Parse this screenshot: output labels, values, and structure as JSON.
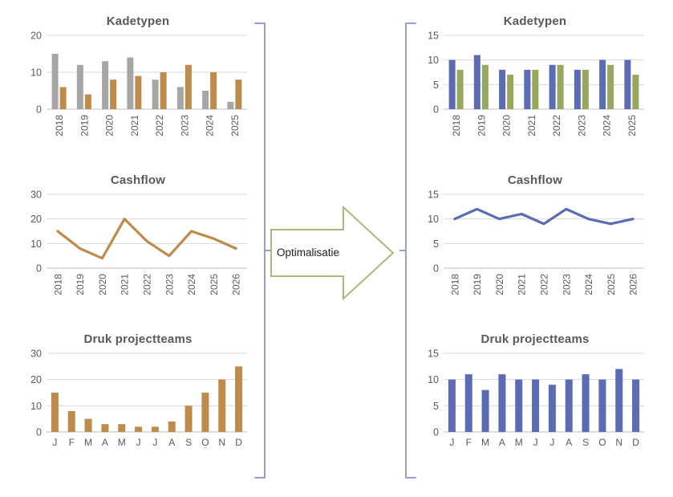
{
  "arrow": {
    "label": "Optimalisatie",
    "border_color": "#A9B97C",
    "fill_color": "#FFFFFF"
  },
  "brackets": {
    "color": "#96A0D6"
  },
  "palette": {
    "gray_series": "#A6A6A6",
    "brown_series": "#BF8B4A",
    "blue_series": "#5B6BB4",
    "green_series": "#97A75F",
    "gridline": "#D9D9D9",
    "axis_line": "#BFBFBF",
    "label_text": "#595959"
  },
  "chart_data": [
    {
      "id": "kadetypen-before",
      "type": "bar",
      "title": "Kadetypen",
      "categories": [
        "2018",
        "2019",
        "2020",
        "2021",
        "2022",
        "2023",
        "2024",
        "2025"
      ],
      "series": [
        {
          "color": "#A6A6A6",
          "values": [
            15,
            12,
            13,
            14,
            8,
            6,
            5,
            2
          ]
        },
        {
          "color": "#BF8B4A",
          "values": [
            6,
            4,
            8,
            9,
            10,
            12,
            10,
            8
          ]
        }
      ],
      "ylim": [
        0,
        20
      ],
      "yticks": [
        0,
        10,
        20
      ],
      "x_label_rotation": 90,
      "grid": true,
      "legend": false
    },
    {
      "id": "cashflow-before",
      "type": "line",
      "title": "Cashflow",
      "categories": [
        "2018",
        "2019",
        "2020",
        "2021",
        "2022",
        "2023",
        "2024",
        "2025",
        "2026"
      ],
      "series": [
        {
          "color": "#BF8B4A",
          "values": [
            15,
            8,
            4,
            20,
            11,
            5,
            15,
            12,
            8
          ]
        }
      ],
      "ylim": [
        0,
        30
      ],
      "yticks": [
        0,
        10,
        20,
        30
      ],
      "x_label_rotation": 90,
      "grid": true,
      "legend": false
    },
    {
      "id": "druk-projectteams-before",
      "type": "bar",
      "title": "Druk projectteams",
      "categories": [
        "J",
        "F",
        "M",
        "A",
        "M",
        "J",
        "J",
        "A",
        "S",
        "O",
        "N",
        "D"
      ],
      "series": [
        {
          "color": "#BF8B4A",
          "values": [
            15,
            8,
            5,
            3,
            3,
            2,
            2,
            4,
            10,
            15,
            20,
            25
          ]
        }
      ],
      "ylim": [
        0,
        30
      ],
      "yticks": [
        0,
        10,
        20,
        30
      ],
      "x_label_rotation": 0,
      "grid": true,
      "legend": false
    },
    {
      "id": "kadetypen-after",
      "type": "bar",
      "title": "Kadetypen",
      "categories": [
        "2018",
        "2019",
        "2020",
        "2021",
        "2022",
        "2023",
        "2024",
        "2025"
      ],
      "series": [
        {
          "color": "#5B6BB4",
          "values": [
            10,
            11,
            8,
            8,
            9,
            8,
            10,
            10
          ]
        },
        {
          "color": "#97A75F",
          "values": [
            8,
            9,
            7,
            8,
            9,
            8,
            9,
            7
          ]
        }
      ],
      "ylim": [
        0,
        15
      ],
      "yticks": [
        0,
        5,
        10,
        15
      ],
      "x_label_rotation": 90,
      "grid": true,
      "legend": false
    },
    {
      "id": "cashflow-after",
      "type": "line",
      "title": "Cashflow",
      "categories": [
        "2018",
        "2019",
        "2020",
        "2021",
        "2022",
        "2023",
        "2024",
        "2025",
        "2026"
      ],
      "series": [
        {
          "color": "#5B6BB4",
          "values": [
            10,
            12,
            10,
            11,
            9,
            12,
            10,
            9,
            10
          ]
        }
      ],
      "ylim": [
        0,
        15
      ],
      "yticks": [
        0,
        5,
        10,
        15
      ],
      "x_label_rotation": 90,
      "grid": true,
      "legend": false
    },
    {
      "id": "druk-projectteams-after",
      "type": "bar",
      "title": "Druk projectteams",
      "categories": [
        "J",
        "F",
        "M",
        "A",
        "M",
        "J",
        "J",
        "A",
        "S",
        "O",
        "N",
        "D"
      ],
      "series": [
        {
          "color": "#5B6BB4",
          "values": [
            10,
            11,
            8,
            11,
            10,
            10,
            9,
            10,
            11,
            10,
            12,
            10
          ]
        }
      ],
      "ylim": [
        0,
        15
      ],
      "yticks": [
        0,
        5,
        10,
        15
      ],
      "x_label_rotation": 0,
      "grid": true,
      "legend": false
    }
  ]
}
